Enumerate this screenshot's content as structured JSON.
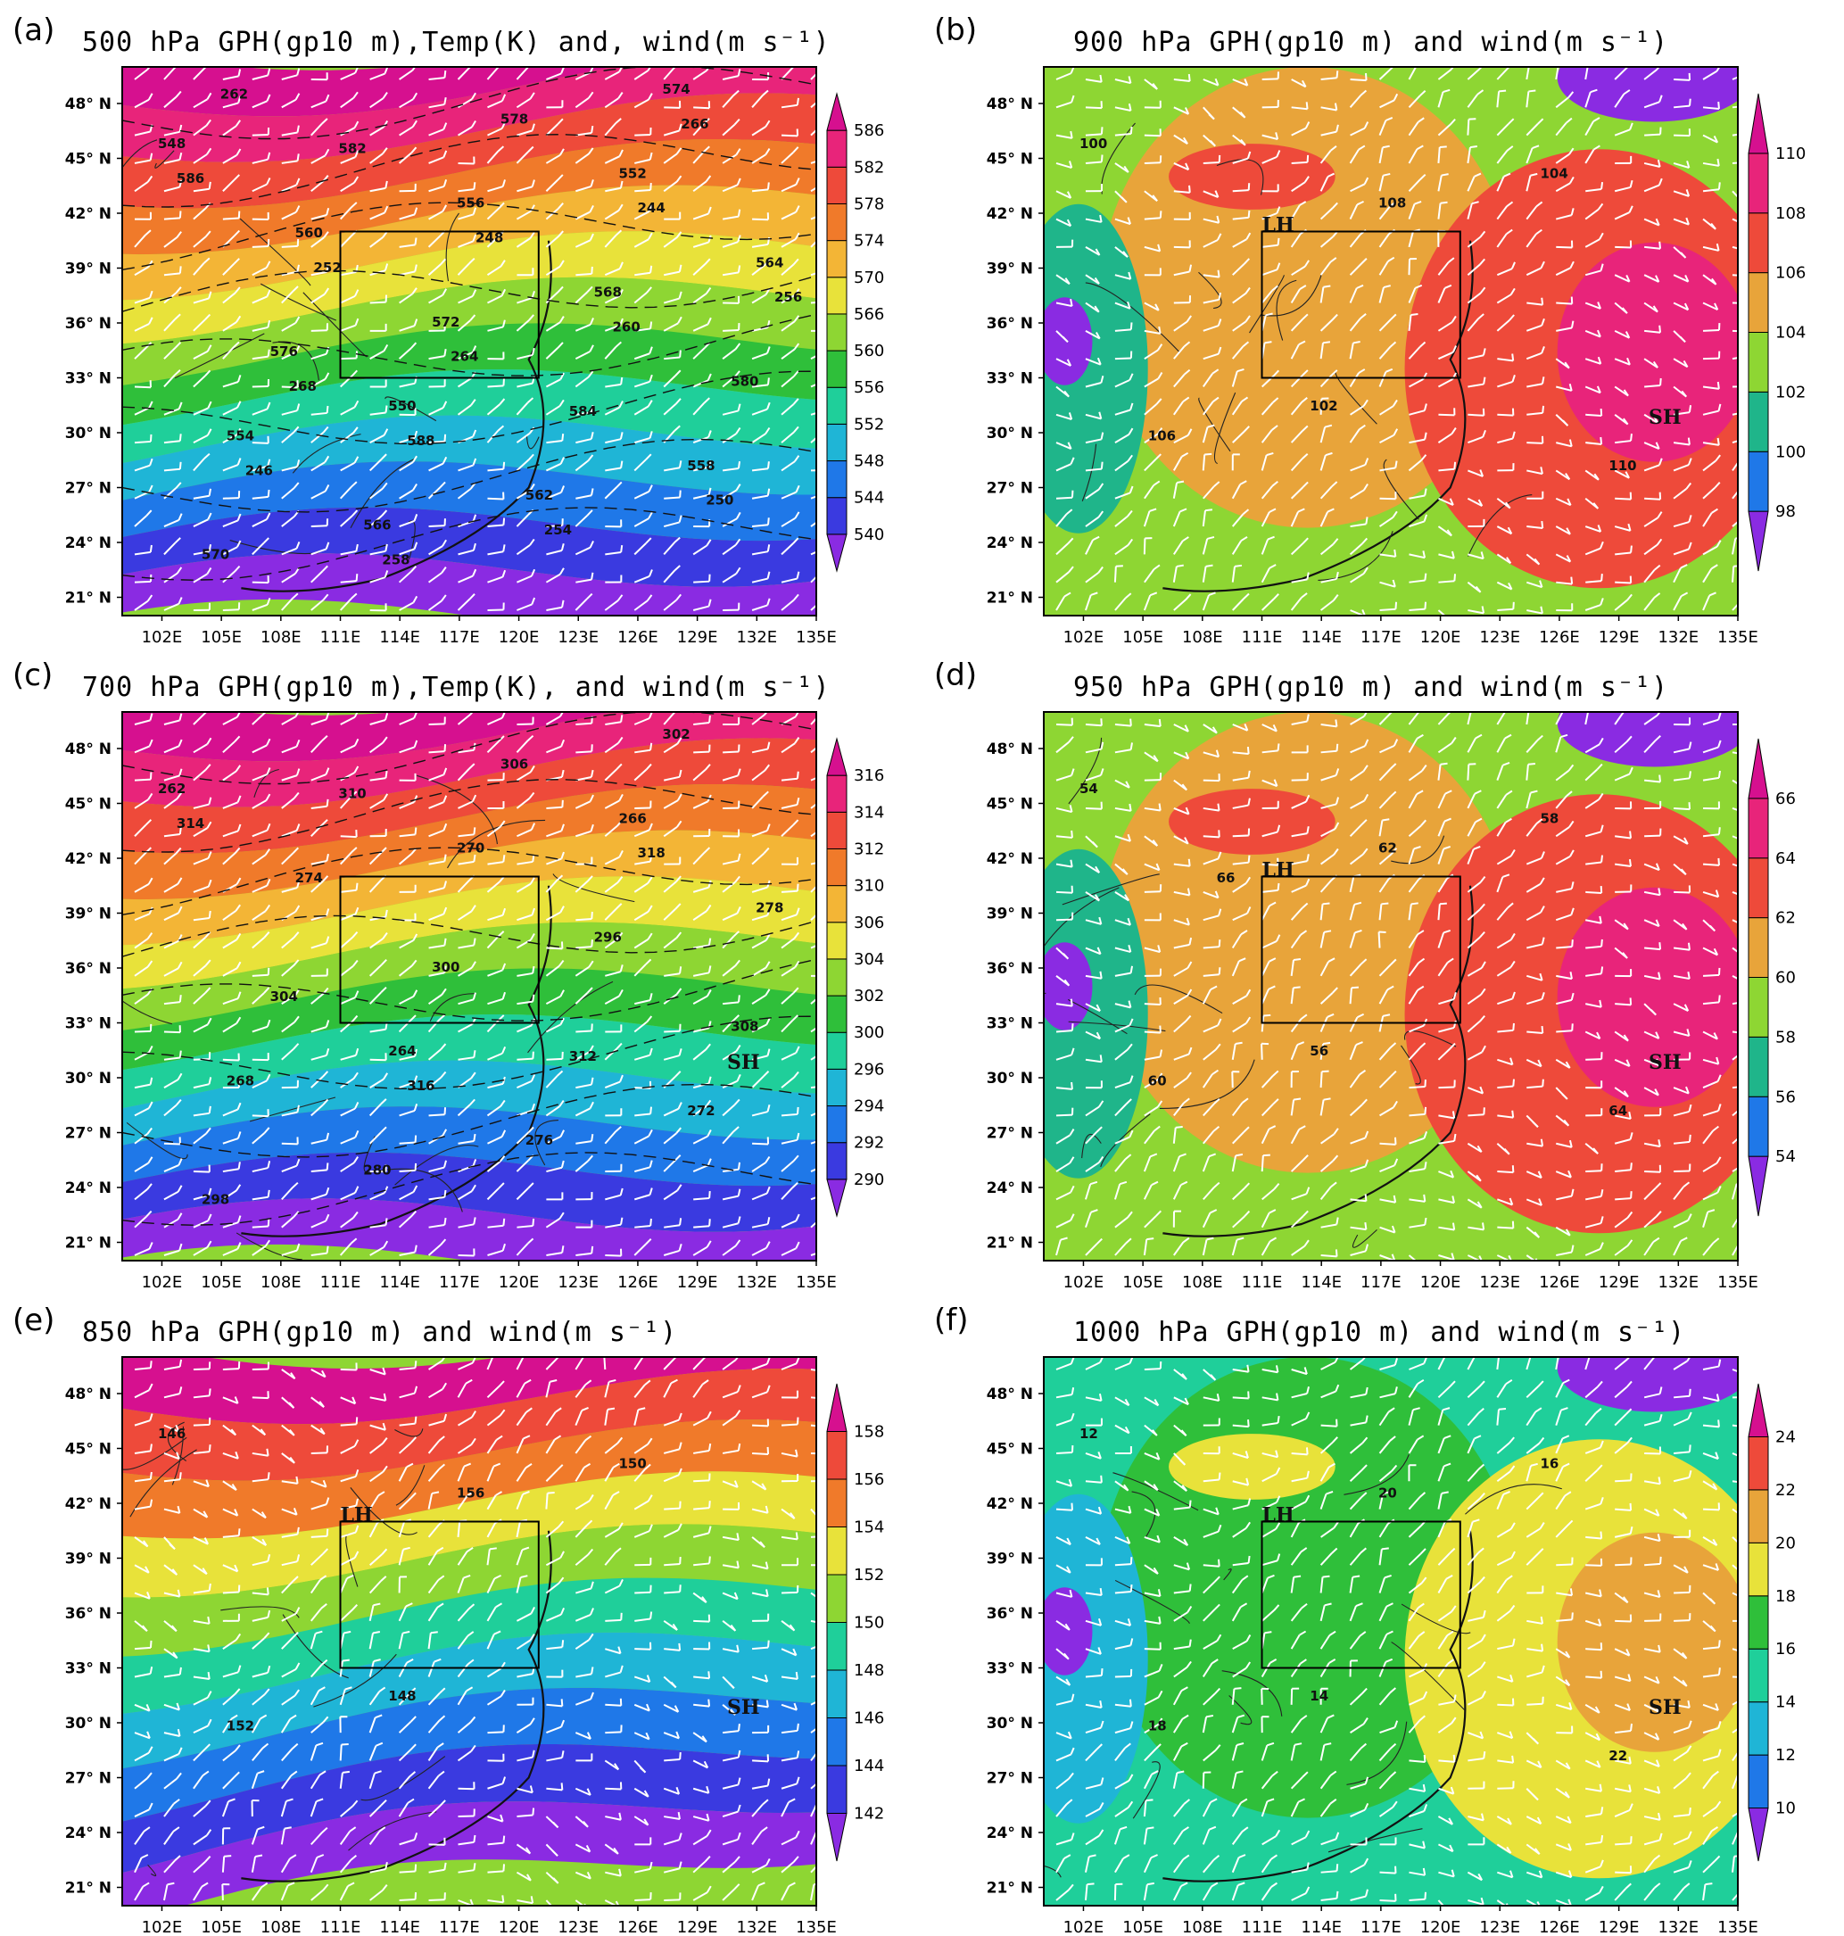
{
  "figure": {
    "panels": [
      {
        "id": "a",
        "label": "(a)",
        "title": "500 hPa GPH(gp10 m),Temp(K) and, wind(m s⁻¹)",
        "colorbar_levels": [
          "540",
          "544",
          "548",
          "552",
          "556",
          "560",
          "566",
          "570",
          "574",
          "578",
          "582",
          "586"
        ],
        "colorbar_colors": [
          "#8a2be2",
          "#3a3ae0",
          "#1f78e8",
          "#1fb5d6",
          "#1fcf9a",
          "#2fbf3a",
          "#8ed633",
          "#e8e23a",
          "#f3b536",
          "#f07a2a",
          "#ee4a3a",
          "#e8247a",
          "#d6108f"
        ],
        "contour_labels": [
          "548",
          "550",
          "552",
          "554",
          "556",
          "558",
          "560",
          "562",
          "564",
          "566",
          "568",
          "570",
          "572",
          "574",
          "576",
          "578",
          "580",
          "582",
          "584",
          "586",
          "588",
          "244",
          "246",
          "248",
          "250",
          "252",
          "254",
          "256",
          "258",
          "260",
          "262",
          "264",
          "266",
          "268"
        ],
        "marker_labels": []
      },
      {
        "id": "b",
        "label": "(b)",
        "title": "900 hPa GPH(gp10 m) and wind(m s⁻¹)",
        "colorbar_levels": [
          "98",
          "100",
          "102",
          "104",
          "106",
          "108",
          "110"
        ],
        "colorbar_colors": [
          "#8a2be2",
          "#1f78e8",
          "#1fb58a",
          "#8ed633",
          "#e8a43a",
          "#ee4a3a",
          "#e8247a",
          "#d6108f"
        ],
        "contour_labels": [
          "100",
          "102",
          "104",
          "106",
          "108",
          "110"
        ],
        "marker_labels": [
          "LH",
          "SH"
        ]
      },
      {
        "id": "c",
        "label": "(c)",
        "title": "700 hPa GPH(gp10 m),Temp(K), and wind(m s⁻¹)",
        "colorbar_levels": [
          "290",
          "292",
          "294",
          "296",
          "300",
          "302",
          "304",
          "306",
          "310",
          "312",
          "314",
          "316"
        ],
        "colorbar_colors": [
          "#8a2be2",
          "#3a3ae0",
          "#1f78e8",
          "#1fb5d6",
          "#1fcf9a",
          "#2fbf3a",
          "#8ed633",
          "#e8e23a",
          "#f3b536",
          "#f07a2a",
          "#ee4a3a",
          "#e8247a",
          "#d6108f"
        ],
        "contour_labels": [
          "262",
          "264",
          "266",
          "268",
          "270",
          "272",
          "274",
          "276",
          "278",
          "280",
          "296",
          "298",
          "300",
          "302",
          "304",
          "306",
          "308",
          "310",
          "312",
          "314",
          "316",
          "318"
        ],
        "marker_labels": [
          "SH"
        ]
      },
      {
        "id": "d",
        "label": "(d)",
        "title": "950 hPa GPH(gp10 m) and wind(m s⁻¹)",
        "colorbar_levels": [
          "54",
          "56",
          "58",
          "60",
          "62",
          "64",
          "66"
        ],
        "colorbar_colors": [
          "#8a2be2",
          "#1f78e8",
          "#1fb58a",
          "#8ed633",
          "#e8a43a",
          "#ee4a3a",
          "#e8247a",
          "#d6108f"
        ],
        "contour_labels": [
          "54",
          "56",
          "58",
          "60",
          "62",
          "64",
          "66"
        ],
        "marker_labels": [
          "LH",
          "SH"
        ]
      },
      {
        "id": "e",
        "label": "(e)",
        "title": "850 hPa GPH(gp10 m) and wind(m s⁻¹)",
        "colorbar_levels": [
          "142",
          "144",
          "146",
          "148",
          "150",
          "152",
          "154",
          "156",
          "158"
        ],
        "colorbar_colors": [
          "#8a2be2",
          "#3a3ae0",
          "#1f78e8",
          "#1fb5d6",
          "#1fcf9a",
          "#8ed633",
          "#e8e23a",
          "#f07a2a",
          "#ee4a3a",
          "#d6108f"
        ],
        "contour_labels": [
          "146",
          "148",
          "150",
          "152",
          "156"
        ],
        "marker_labels": [
          "LH",
          "SH"
        ]
      },
      {
        "id": "f",
        "label": "(f)",
        "title": "1000 hPa GPH(gp10 m) and wind(m s⁻¹)",
        "colorbar_levels": [
          "10",
          "12",
          "14",
          "16",
          "18",
          "20",
          "22",
          "24"
        ],
        "colorbar_colors": [
          "#8a2be2",
          "#1f78e8",
          "#1fb5d6",
          "#1fcf9a",
          "#2fbf3a",
          "#e8e23a",
          "#e8a43a",
          "#ee4a3a",
          "#d6108f"
        ],
        "contour_labels": [
          "12",
          "14",
          "16",
          "18",
          "20",
          "22"
        ],
        "marker_labels": [
          "LH",
          "SH"
        ]
      }
    ],
    "lat_labels": [
      "21° N",
      "24° N",
      "27° N",
      "30° N",
      "33° N",
      "36° N",
      "39° N",
      "42° N",
      "45° N",
      "48° N"
    ],
    "lon_labels": [
      "102E",
      "105E",
      "108E",
      "111E",
      "114E",
      "117E",
      "120E",
      "123E",
      "126E",
      "129E",
      "132E",
      "135E"
    ]
  }
}
